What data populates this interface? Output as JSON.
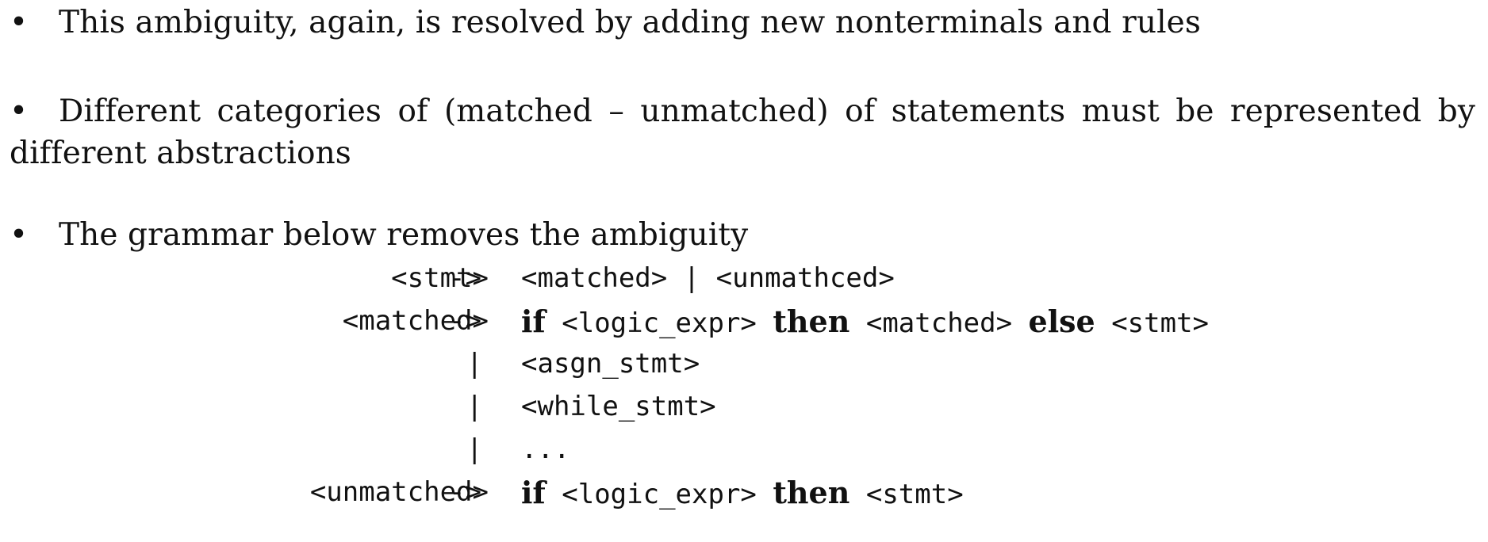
{
  "bullet_symbol": "•",
  "bullets": [
    "This ambiguity, again, is resolved by adding new nonterminals and rules",
    "Different categories of (matched – unmatched) of statements must be represented by different abstractions",
    "The grammar below removes the ambiguity"
  ],
  "grammar": {
    "arrow": "->",
    "bar": "|",
    "rules": [
      {
        "lhs": "<stmt>",
        "rhs": [
          {
            "text": "<matched>"
          },
          {
            "text": " | "
          },
          {
            "text": "<unmathced>"
          }
        ]
      },
      {
        "lhs": "<matched>",
        "rhs": [
          {
            "text": "if",
            "kw": true
          },
          {
            "text": " <logic_expr> "
          },
          {
            "text": "then",
            "kw": true
          },
          {
            "text": " <matched> "
          },
          {
            "text": "else",
            "kw": true
          },
          {
            "text": " <stmt>"
          }
        ]
      },
      {
        "alt": true,
        "rhs": [
          {
            "text": "<asgn_stmt>"
          }
        ]
      },
      {
        "alt": true,
        "rhs": [
          {
            "text": "<while_stmt>"
          }
        ]
      },
      {
        "alt": true,
        "rhs": [
          {
            "text": "..."
          }
        ]
      },
      {
        "lhs": "<unmatched>",
        "rhs": [
          {
            "text": "if",
            "kw": true
          },
          {
            "text": " <logic_expr> "
          },
          {
            "text": "then",
            "kw": true
          },
          {
            "text": " <stmt>"
          }
        ]
      }
    ]
  }
}
